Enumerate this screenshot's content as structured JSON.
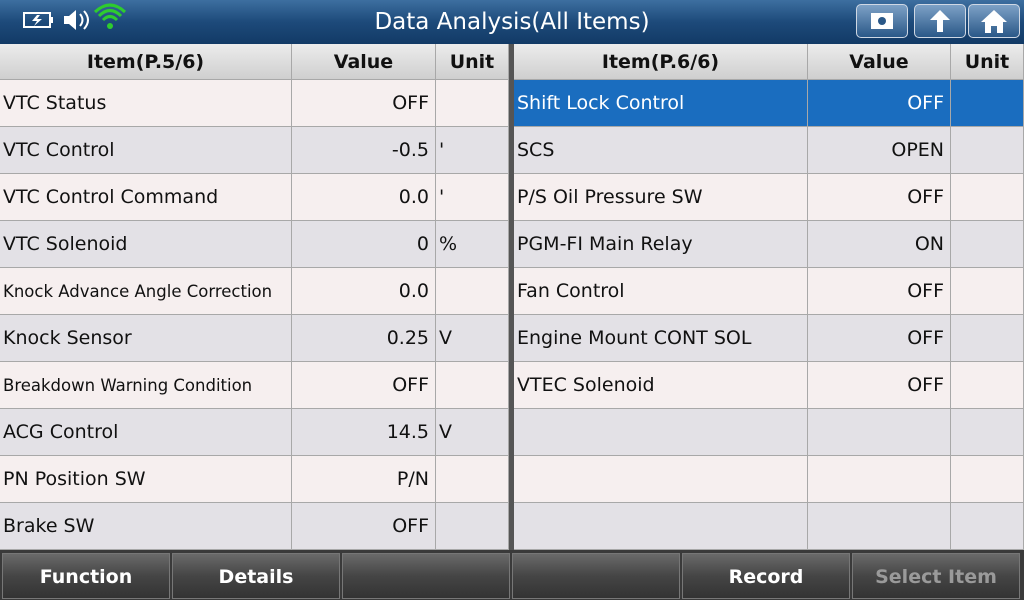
{
  "header": {
    "title": "Data Analysis(All Items)"
  },
  "tables": [
    {
      "columns": [
        "Item(P.5/6)",
        "Value",
        "Unit"
      ],
      "rows": [
        {
          "item": "VTC Status",
          "value": "OFF"
        },
        {
          "item": "VTC Control",
          "value": "-0.5",
          "unit": "'"
        },
        {
          "item": "VTC Control Command",
          "value": "0.0",
          "unit": "'"
        },
        {
          "item": "VTC Solenoid",
          "value": "0",
          "unit": "%"
        },
        {
          "item": "Knock Advance Angle Correction",
          "value": "0.0"
        },
        {
          "item": "Knock Sensor",
          "value": "0.25",
          "unit": "V"
        },
        {
          "item": "Breakdown Warning Condition",
          "value": "OFF"
        },
        {
          "item": "ACG Control",
          "value": "14.5",
          "unit": "V"
        },
        {
          "item": "PN Position SW",
          "value": "P/N"
        },
        {
          "item": "Brake SW",
          "value": "OFF"
        }
      ]
    },
    {
      "columns": [
        "Item(P.6/6)",
        "Value",
        "Unit"
      ],
      "rows": [
        {
          "item": "Shift Lock Control",
          "value": "OFF",
          "selected": true
        },
        {
          "item": "SCS",
          "value": "OPEN"
        },
        {
          "item": "P/S Oil Pressure SW",
          "value": "OFF"
        },
        {
          "item": "PGM-FI Main Relay",
          "value": "ON"
        },
        {
          "item": "Fan Control",
          "value": "OFF"
        },
        {
          "item": "Engine Mount CONT SOL",
          "value": "OFF"
        },
        {
          "item": "VTEC Solenoid",
          "value": "OFF"
        }
      ]
    }
  ],
  "buttons": [
    {
      "label": "Function",
      "enabled": true
    },
    {
      "label": "Details",
      "enabled": true
    },
    {
      "label": null,
      "enabled": true
    },
    {
      "label": null,
      "enabled": true
    },
    {
      "label": "Record",
      "enabled": true
    },
    {
      "label": "Select Item",
      "enabled": false
    }
  ]
}
